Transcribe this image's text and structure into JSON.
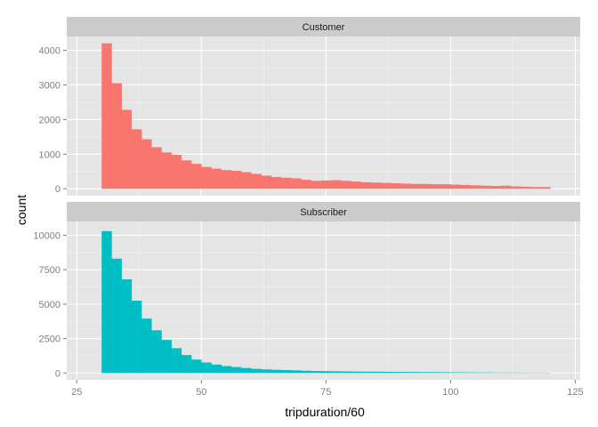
{
  "chart_data": {
    "type": "bar",
    "subtype": "faceted-histogram",
    "xlabel": "tripduration/60",
    "ylabel": "count",
    "xlim": [
      23,
      126
    ],
    "x_ticks": [
      25,
      50,
      75,
      100,
      125
    ],
    "bin_start": 30,
    "bin_width": 2,
    "facets": [
      {
        "name": "Customer",
        "color": "#F8766D",
        "ylim": [
          -200,
          4400
        ],
        "y_ticks": [
          0,
          1000,
          2000,
          3000,
          4000
        ],
        "values": [
          4200,
          3050,
          2280,
          1720,
          1430,
          1200,
          1050,
          980,
          820,
          720,
          630,
          580,
          540,
          520,
          480,
          430,
          380,
          340,
          320,
          300,
          260,
          230,
          240,
          250,
          230,
          210,
          190,
          180,
          170,
          160,
          150,
          140,
          140,
          130,
          130,
          120,
          110,
          100,
          90,
          80,
          90,
          70,
          60,
          50,
          50
        ]
      },
      {
        "name": "Subscriber",
        "color": "#00BFC4",
        "ylim": [
          -500,
          11000
        ],
        "y_ticks": [
          0,
          2500,
          5000,
          7500,
          10000
        ],
        "values": [
          10300,
          8300,
          6800,
          5250,
          3950,
          3100,
          2400,
          1800,
          1300,
          970,
          760,
          610,
          500,
          430,
          360,
          300,
          260,
          230,
          210,
          190,
          160,
          140,
          130,
          120,
          110,
          100,
          95,
          90,
          85,
          80,
          75,
          70,
          65,
          60,
          55,
          50,
          45,
          40,
          35,
          30,
          28,
          25,
          22,
          20,
          20
        ]
      }
    ]
  }
}
